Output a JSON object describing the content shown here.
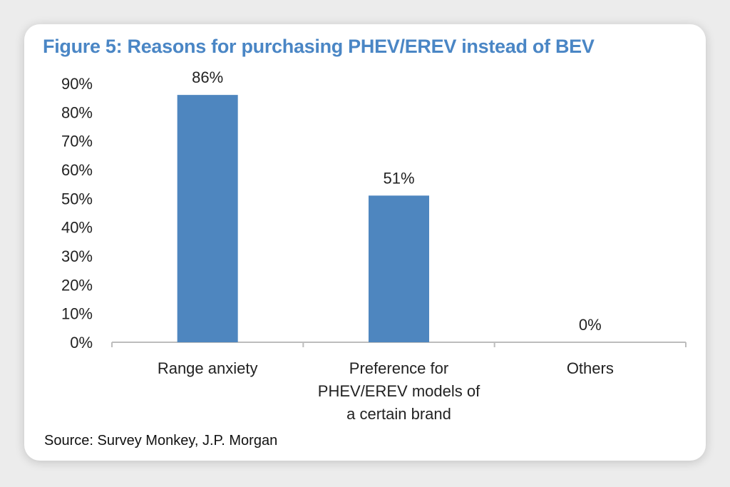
{
  "figure": {
    "title": "Figure 5: Reasons for purchasing PHEV/EREV instead of BEV",
    "source": "Source: Survey Monkey, J.P. Morgan"
  },
  "colors": {
    "title": "#4a86c5",
    "bar": "#4e86bf",
    "axis": "#bdbdbd"
  },
  "chart_data": {
    "type": "bar",
    "title": "Figure 5: Reasons for purchasing PHEV/EREV instead of BEV",
    "xlabel": "",
    "ylabel": "",
    "categories": [
      [
        "Range anxiety"
      ],
      [
        "Preference for",
        "PHEV/EREV models of",
        "a certain brand"
      ],
      [
        "Others"
      ]
    ],
    "values": [
      86,
      51,
      0
    ],
    "data_labels": [
      "86%",
      "51%",
      "0%"
    ],
    "ylim": [
      0,
      90
    ],
    "yticks": [
      0,
      10,
      20,
      30,
      40,
      50,
      60,
      70,
      80,
      90
    ],
    "ytick_labels": [
      "0%",
      "10%",
      "20%",
      "30%",
      "40%",
      "50%",
      "60%",
      "70%",
      "80%",
      "90%"
    ],
    "grid": false,
    "legend": "none"
  }
}
